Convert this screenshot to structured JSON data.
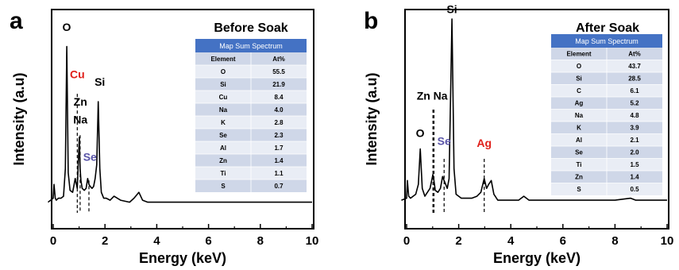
{
  "colors": {
    "spectrum": "#000000",
    "table_header": "#4472c4",
    "table_row_dark": "#cfd7e8",
    "table_row_light": "#e9edf5",
    "red_label": "#e0201a",
    "purple_label": "#5a55a8"
  },
  "chart_data": [
    {
      "type": "line",
      "panel": "a",
      "title": "Before Soak",
      "xlabel": "Energy (keV)",
      "ylabel": "Intensity (a.u)",
      "xlim": [
        -0.3,
        10
      ],
      "ylim": [
        0,
        1
      ],
      "xticks": [
        "0",
        "2",
        "4",
        "6",
        "8",
        "10"
      ],
      "series": [
        {
          "x": [
            -0.2,
            0.0,
            0.03,
            0.08,
            0.12,
            0.2,
            0.3,
            0.4,
            0.47,
            0.525,
            0.58,
            0.65,
            0.75,
            0.85,
            0.93,
            1.01,
            1.04,
            1.07,
            1.12,
            1.2,
            1.27,
            1.33,
            1.38,
            1.43,
            1.5,
            1.56,
            1.62,
            1.68,
            1.74,
            1.8,
            1.86,
            1.95,
            2.05,
            2.2,
            2.35,
            2.6,
            2.95,
            3.12,
            3.31,
            3.45,
            3.65,
            4.0,
            4.5,
            5.0,
            6.0,
            7.0,
            8.0,
            9.0,
            10.0
          ],
          "values": [
            0.03,
            0.05,
            0.12,
            0.05,
            0.04,
            0.05,
            0.05,
            0.06,
            0.2,
            0.82,
            0.18,
            0.09,
            0.08,
            0.15,
            0.1,
            0.36,
            0.2,
            0.14,
            0.1,
            0.09,
            0.1,
            0.15,
            0.12,
            0.11,
            0.1,
            0.11,
            0.15,
            0.22,
            0.54,
            0.2,
            0.08,
            0.05,
            0.05,
            0.04,
            0.06,
            0.04,
            0.03,
            0.05,
            0.08,
            0.04,
            0.03,
            0.03,
            0.03,
            0.03,
            0.03,
            0.03,
            0.03,
            0.03,
            0.03
          ]
        }
      ],
      "peak_labels": [
        {
          "text": "O",
          "x": 0.52,
          "y": 0.9,
          "color": "#000000"
        },
        {
          "text": "Cu",
          "x": 0.93,
          "y": 0.66,
          "color": "#e0201a"
        },
        {
          "text": "Si",
          "x": 1.8,
          "y": 0.62,
          "color": "#000000"
        },
        {
          "text": "Zn",
          "x": 1.05,
          "y": 0.52,
          "color": "#000000"
        },
        {
          "text": "Na",
          "x": 1.05,
          "y": 0.43,
          "color": "#000000"
        },
        {
          "text": "Se",
          "x": 1.42,
          "y": 0.24,
          "color": "#5a55a8"
        }
      ],
      "dashed_lines": [
        {
          "x": 0.93,
          "y_top": 0.58
        },
        {
          "x": 1.04,
          "y_top": 0.37
        },
        {
          "x": 1.38,
          "y_top": 0.14
        }
      ],
      "table": {
        "header": "Map Sum Spectrum",
        "columns": [
          "Element",
          "At%"
        ],
        "rows": [
          [
            "O",
            "55.5"
          ],
          [
            "Si",
            "21.9"
          ],
          [
            "Cu",
            "8.4"
          ],
          [
            "Na",
            "4.0"
          ],
          [
            "K",
            "2.8"
          ],
          [
            "Se",
            "2.3"
          ],
          [
            "Al",
            "1.7"
          ],
          [
            "Zn",
            "1.4"
          ],
          [
            "Ti",
            "1.1"
          ],
          [
            "S",
            "0.7"
          ]
        ]
      }
    },
    {
      "type": "line",
      "panel": "b",
      "title": "After Soak",
      "xlabel": "Energy (keV)",
      "ylabel": "Intensity (a.u)",
      "xlim": [
        -0.3,
        10
      ],
      "ylim": [
        0,
        1
      ],
      "xticks": [
        "0",
        "2",
        "4",
        "6",
        "8",
        "10"
      ],
      "series": [
        {
          "x": [
            -0.2,
            0.0,
            0.03,
            0.08,
            0.15,
            0.25,
            0.35,
            0.45,
            0.525,
            0.6,
            0.7,
            0.8,
            0.9,
            0.98,
            1.01,
            1.05,
            1.1,
            1.2,
            1.3,
            1.38,
            1.44,
            1.5,
            1.56,
            1.63,
            1.74,
            1.82,
            1.9,
            2.0,
            2.1,
            2.3,
            2.5,
            2.7,
            2.85,
            2.98,
            3.07,
            3.15,
            3.25,
            3.35,
            3.5,
            3.7,
            4.0,
            4.3,
            4.5,
            4.7,
            5.0,
            5.5,
            6.0,
            7.0,
            8.0,
            8.6,
            8.8,
            9.0,
            10.0
          ],
          "values": [
            0.04,
            0.05,
            0.14,
            0.06,
            0.05,
            0.06,
            0.07,
            0.12,
            0.3,
            0.1,
            0.06,
            0.08,
            0.1,
            0.15,
            0.17,
            0.14,
            0.09,
            0.08,
            0.1,
            0.16,
            0.14,
            0.12,
            0.1,
            0.15,
            0.96,
            0.2,
            0.07,
            0.06,
            0.05,
            0.05,
            0.05,
            0.06,
            0.08,
            0.15,
            0.1,
            0.12,
            0.14,
            0.07,
            0.04,
            0.04,
            0.04,
            0.04,
            0.06,
            0.04,
            0.04,
            0.04,
            0.04,
            0.04,
            0.04,
            0.05,
            0.04,
            0.04,
            0.04
          ]
        }
      ],
      "peak_labels": [
        {
          "text": "Si",
          "x": 1.74,
          "y": 0.99,
          "color": "#000000"
        },
        {
          "text": "Zn",
          "x": 0.65,
          "y": 0.55,
          "color": "#000000"
        },
        {
          "text": "Na",
          "x": 1.3,
          "y": 0.55,
          "color": "#000000"
        },
        {
          "text": "O",
          "x": 0.52,
          "y": 0.36,
          "color": "#000000"
        },
        {
          "text": "Se",
          "x": 1.44,
          "y": 0.32,
          "color": "#5a55a8"
        },
        {
          "text": "Ag",
          "x": 2.98,
          "y": 0.31,
          "color": "#e0201a"
        }
      ],
      "dashed_lines": [
        {
          "x": 1.01,
          "y_top": 0.5
        },
        {
          "x": 1.05,
          "y_top": 0.5
        },
        {
          "x": 1.44,
          "y_top": 0.25
        },
        {
          "x": 2.98,
          "y_top": 0.25
        }
      ],
      "table": {
        "header": "Map Sum Spectrum",
        "columns": [
          "Element",
          "At%"
        ],
        "rows": [
          [
            "O",
            "43.7"
          ],
          [
            "Si",
            "28.5"
          ],
          [
            "C",
            "6.1"
          ],
          [
            "Ag",
            "5.2"
          ],
          [
            "Na",
            "4.8"
          ],
          [
            "K",
            "3.9"
          ],
          [
            "Al",
            "2.1"
          ],
          [
            "Se",
            "2.0"
          ],
          [
            "Ti",
            "1.5"
          ],
          [
            "Zn",
            "1.4"
          ],
          [
            "S",
            "0.5"
          ]
        ]
      }
    }
  ]
}
